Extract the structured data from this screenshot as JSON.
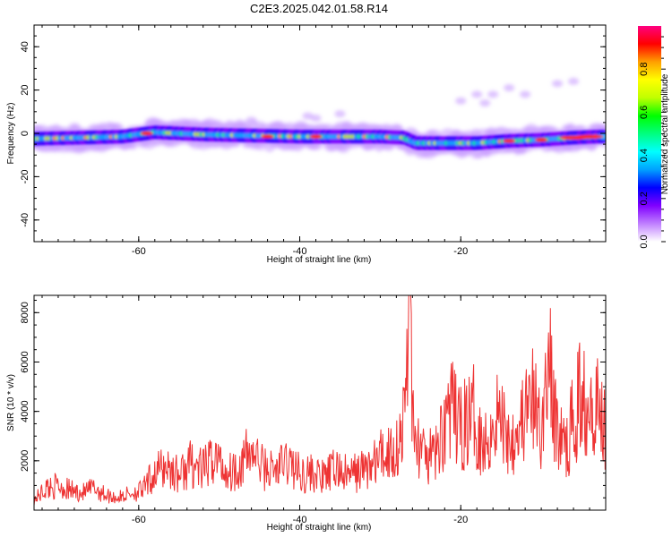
{
  "title": "C2E3.2025.042.01.58.R14",
  "chart_data": [
    {
      "type": "heatmap",
      "xlabel": "Height of straight line (km)",
      "ylabel": "Frequency (Hz)",
      "xlim": [
        -73,
        -2
      ],
      "ylim": [
        -50,
        50
      ],
      "xticks": [
        -60,
        -40,
        -20
      ],
      "yticks": [
        -40,
        -20,
        0,
        20,
        40
      ],
      "grid": false,
      "ridge": {
        "x": [
          -73,
          -67,
          -62,
          -58,
          -52,
          -46,
          -40,
          -34,
          -30,
          -27,
          -25.5,
          -22,
          -18,
          -14,
          -10,
          -6,
          -3
        ],
        "y": [
          -2.5,
          -2,
          -1.5,
          0.5,
          -0.5,
          -1,
          -1.5,
          -1.5,
          -1.5,
          -2,
          -4.5,
          -4.5,
          -4.5,
          -3.5,
          -3,
          -2,
          -1.5
        ]
      }
    },
    {
      "type": "colorbar",
      "label": "Normalized spectral amplitude",
      "range": [
        0.0,
        1.0
      ],
      "ticks": [
        "0.0",
        "0.2",
        "0.4",
        "0.6",
        "0.8"
      ],
      "colormap": [
        "#ffffff",
        "#c080ff",
        "#8000ff",
        "#0000ff",
        "#00a0ff",
        "#00ffff",
        "#00ff80",
        "#00ff00",
        "#c0ff00",
        "#ffff00",
        "#ffa000",
        "#ff0000",
        "#ff0080"
      ]
    },
    {
      "type": "line",
      "xlabel": "Height of straight line (km)",
      "ylabel": "SNR (10 * v/v)",
      "xlim": [
        -73,
        -2
      ],
      "ylim": [
        0,
        8700
      ],
      "xticks": [
        -60,
        -40,
        -20
      ],
      "yticks": [
        2000,
        4000,
        6000,
        8000
      ],
      "color": "#ee3333",
      "grid": false,
      "x": [
        -73,
        -71.5,
        -70,
        -68.5,
        -67,
        -65.5,
        -64,
        -62.5,
        -61,
        -59.5,
        -58,
        -56.5,
        -55,
        -53.5,
        -52,
        -50.5,
        -49,
        -47.5,
        -46,
        -44.5,
        -43,
        -41.5,
        -40,
        -38.5,
        -37,
        -35.5,
        -34,
        -32.5,
        -31,
        -29.5,
        -28,
        -27,
        -26.3,
        -25.8,
        -25.3,
        -24.5,
        -23,
        -21.5,
        -20,
        -18.5,
        -17,
        -15.5,
        -14,
        -12.5,
        -11,
        -9.8,
        -9.3,
        -8.5,
        -7,
        -5.5,
        -4,
        -2
      ],
      "y": [
        400,
        900,
        1000,
        800,
        700,
        900,
        600,
        500,
        700,
        800,
        1500,
        1800,
        1400,
        1900,
        1600,
        2200,
        1500,
        1800,
        2400,
        1700,
        1600,
        2000,
        1500,
        1500,
        1300,
        1700,
        1400,
        1600,
        1800,
        2300,
        2500,
        3600,
        8700,
        2200,
        2800,
        2000,
        2300,
        4200,
        3300,
        3900,
        2600,
        4000,
        2900,
        3600,
        4300,
        3100,
        7000,
        3900,
        2400,
        4300,
        5000,
        3400
      ]
    }
  ]
}
